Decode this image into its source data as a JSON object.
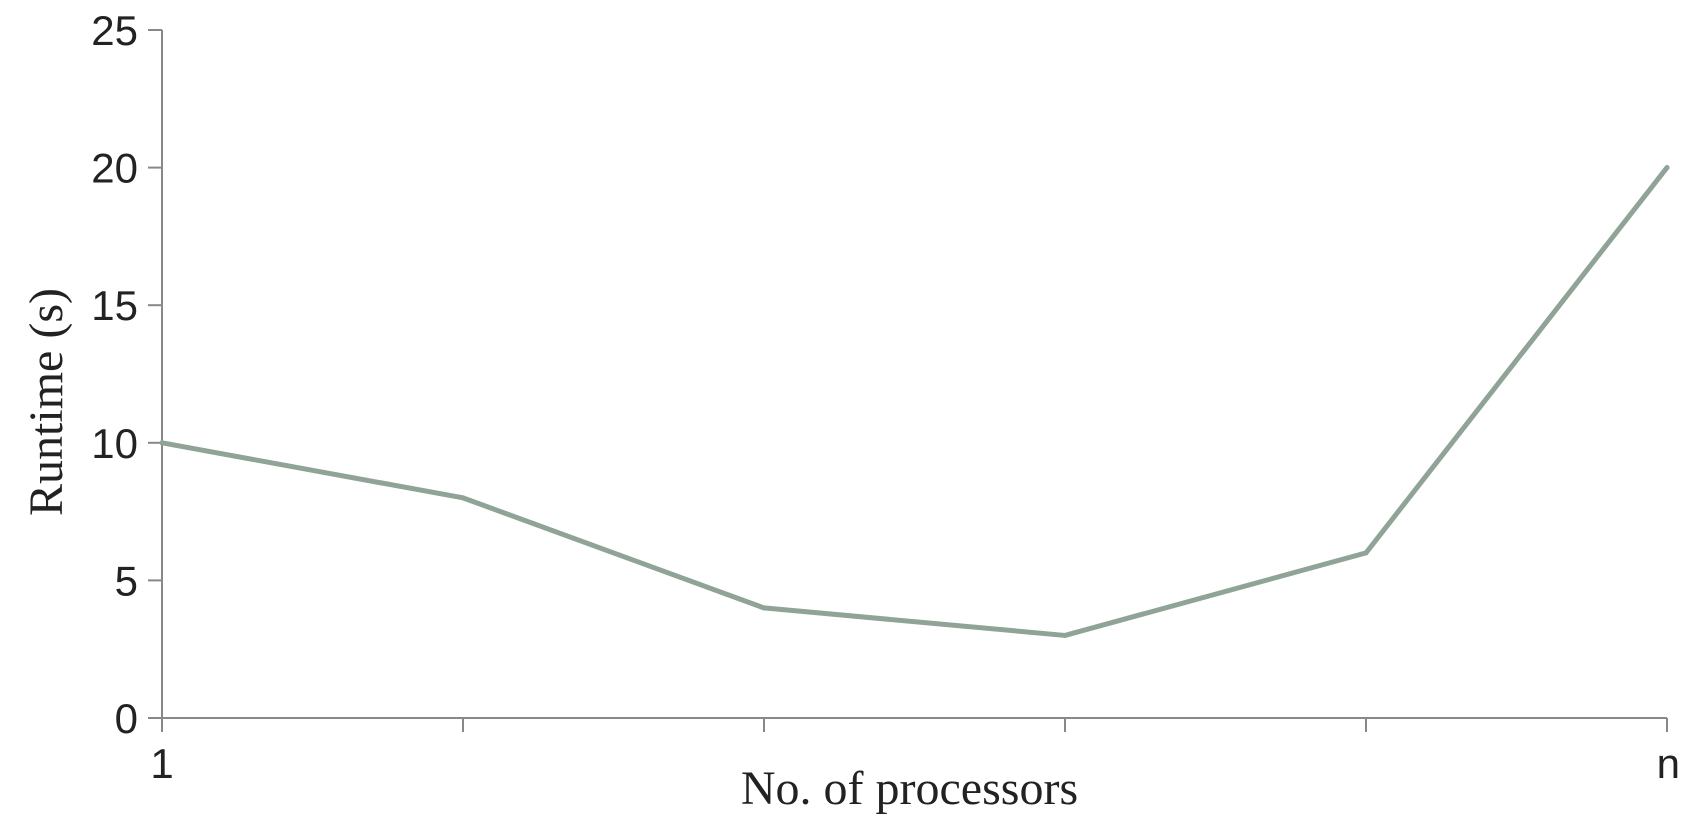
{
  "chart_data": {
    "type": "line",
    "title": "",
    "xlabel": "No. of processors",
    "ylabel": "Runtime (s)",
    "ylim": [
      0,
      25
    ],
    "yticks": [
      0,
      5,
      10,
      15,
      20,
      25
    ],
    "ytick_labels": [
      "0",
      "5",
      "10",
      "15",
      "20",
      "25"
    ],
    "categories": [
      "1",
      "",
      "",
      "",
      "",
      "n"
    ],
    "series": [
      {
        "name": "",
        "values": [
          10,
          8,
          4,
          3,
          6,
          20
        ],
        "color": "#8fa396"
      }
    ],
    "grid": false,
    "legend": "none"
  }
}
